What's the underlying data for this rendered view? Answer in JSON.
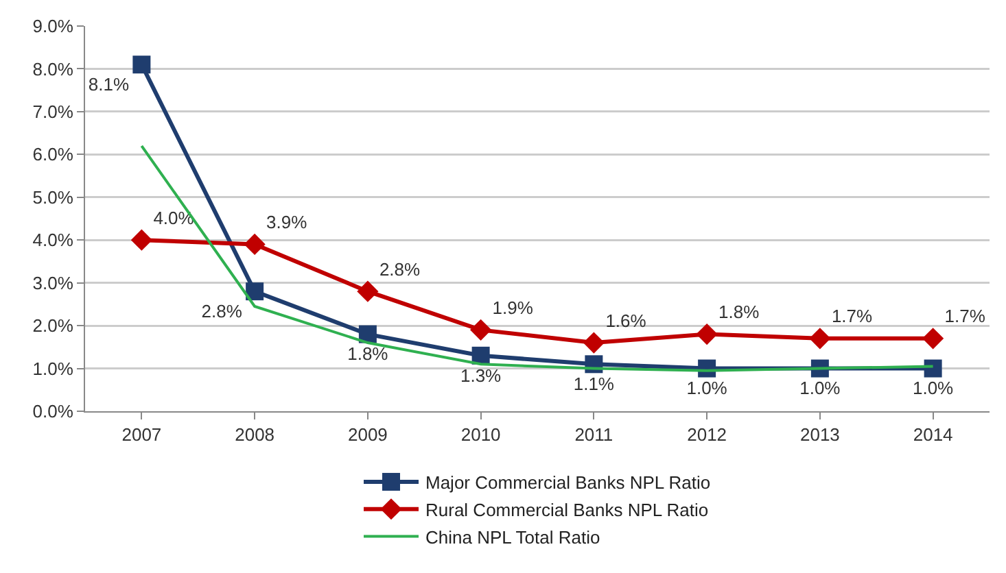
{
  "chart_data": {
    "type": "line",
    "categories": [
      "2007",
      "2008",
      "2009",
      "2010",
      "2011",
      "2012",
      "2013",
      "2014"
    ],
    "series": [
      {
        "name": "Major Commercial Banks NPL Ratio",
        "color": "#1f3d6e",
        "marker": "square",
        "values": [
          8.1,
          2.8,
          1.8,
          1.3,
          1.1,
          1.0,
          1.0,
          1.0
        ],
        "value_labels": [
          "8.1%",
          "2.8%",
          "1.8%",
          "1.3%",
          "1.1%",
          "1.0%",
          "1.0%",
          "1.0%"
        ]
      },
      {
        "name": "Rural Commercial Banks NPL Ratio",
        "color": "#c00000",
        "marker": "diamond",
        "values": [
          4.0,
          3.9,
          2.8,
          1.9,
          1.6,
          1.8,
          1.7,
          1.7
        ],
        "value_labels": [
          "4.0%",
          "3.9%",
          "2.8%",
          "1.9%",
          "1.6%",
          "1.8%",
          "1.7%",
          "1.7%"
        ]
      },
      {
        "name": "China NPL Total Ratio",
        "color": "#2fb050",
        "marker": "none",
        "values": [
          6.2,
          2.45,
          1.6,
          1.1,
          1.0,
          0.95,
          1.0,
          1.05
        ]
      }
    ],
    "ylim": [
      0,
      9
    ],
    "yticks": [
      {
        "value": 0,
        "label": "0.0%"
      },
      {
        "value": 1,
        "label": "1.0%"
      },
      {
        "value": 2,
        "label": "2.0%"
      },
      {
        "value": 3,
        "label": "3.0%"
      },
      {
        "value": 4,
        "label": "4.0%"
      },
      {
        "value": 5,
        "label": "5.0%"
      },
      {
        "value": 6,
        "label": "6.0%"
      },
      {
        "value": 7,
        "label": "7.0%"
      },
      {
        "value": 8,
        "label": "8.0%"
      },
      {
        "value": 9,
        "label": "9.0%"
      }
    ],
    "grid": "y",
    "legend": "bottom",
    "line_style": "solid"
  }
}
